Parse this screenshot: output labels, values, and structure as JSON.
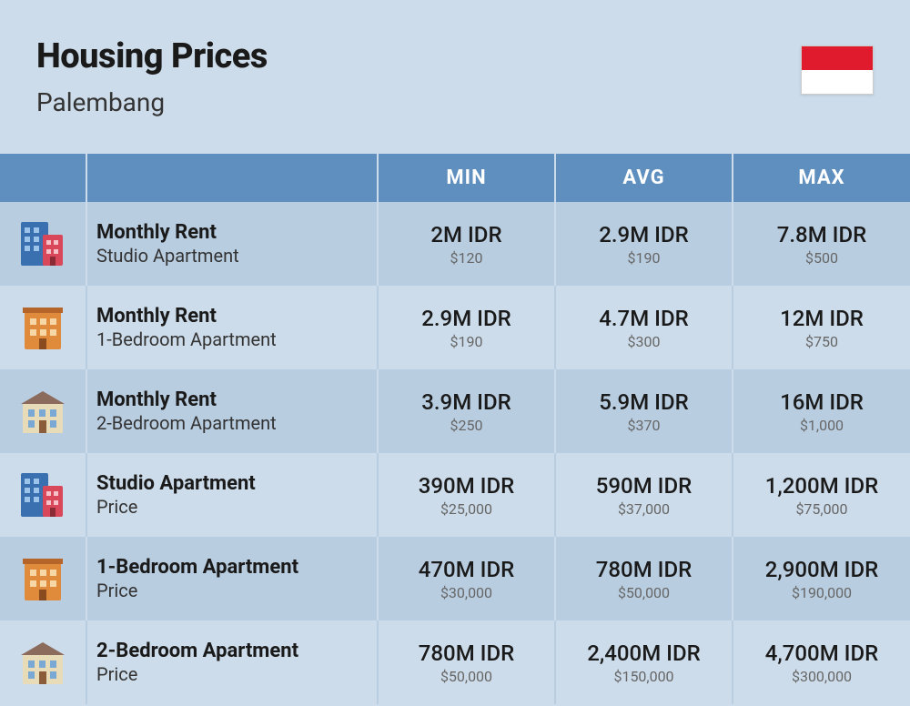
{
  "header": {
    "title": "Housing Prices",
    "city": "Palembang",
    "flag": {
      "top_color": "#e11b2e",
      "bottom_color": "#ffffff"
    }
  },
  "colors": {
    "page_bg": "#cddcea",
    "header_bg": "#5f8fbf",
    "header_text": "#ffffff",
    "row_even": "#b9cde1",
    "row_odd": "#cddcea",
    "text_primary": "#1a1a1a",
    "text_secondary": "#333333",
    "text_muted": "#666666"
  },
  "columns": {
    "min": "MIN",
    "avg": "AVG",
    "max": "MAX"
  },
  "icons": {
    "studio": "studio-building-icon",
    "onebed": "orange-building-icon",
    "twobed": "house-icon"
  },
  "rows": [
    {
      "icon": "studio",
      "title": "Monthly Rent",
      "sub": "Studio Apartment",
      "min_idr": "2M IDR",
      "min_usd": "$120",
      "avg_idr": "2.9M IDR",
      "avg_usd": "$190",
      "max_idr": "7.8M IDR",
      "max_usd": "$500"
    },
    {
      "icon": "onebed",
      "title": "Monthly Rent",
      "sub": "1-Bedroom Apartment",
      "min_idr": "2.9M IDR",
      "min_usd": "$190",
      "avg_idr": "4.7M IDR",
      "avg_usd": "$300",
      "max_idr": "12M IDR",
      "max_usd": "$750"
    },
    {
      "icon": "twobed",
      "title": "Monthly Rent",
      "sub": "2-Bedroom Apartment",
      "min_idr": "3.9M IDR",
      "min_usd": "$250",
      "avg_idr": "5.9M IDR",
      "avg_usd": "$370",
      "max_idr": "16M IDR",
      "max_usd": "$1,000"
    },
    {
      "icon": "studio",
      "title": "Studio Apartment",
      "sub": "Price",
      "min_idr": "390M IDR",
      "min_usd": "$25,000",
      "avg_idr": "590M IDR",
      "avg_usd": "$37,000",
      "max_idr": "1,200M IDR",
      "max_usd": "$75,000"
    },
    {
      "icon": "onebed",
      "title": "1-Bedroom Apartment",
      "sub": "Price",
      "min_idr": "470M IDR",
      "min_usd": "$30,000",
      "avg_idr": "780M IDR",
      "avg_usd": "$50,000",
      "max_idr": "2,900M IDR",
      "max_usd": "$190,000"
    },
    {
      "icon": "twobed",
      "title": "2-Bedroom Apartment",
      "sub": "Price",
      "min_idr": "780M IDR",
      "min_usd": "$50,000",
      "avg_idr": "2,400M IDR",
      "avg_usd": "$150,000",
      "max_idr": "4,700M IDR",
      "max_usd": "$300,000"
    }
  ]
}
